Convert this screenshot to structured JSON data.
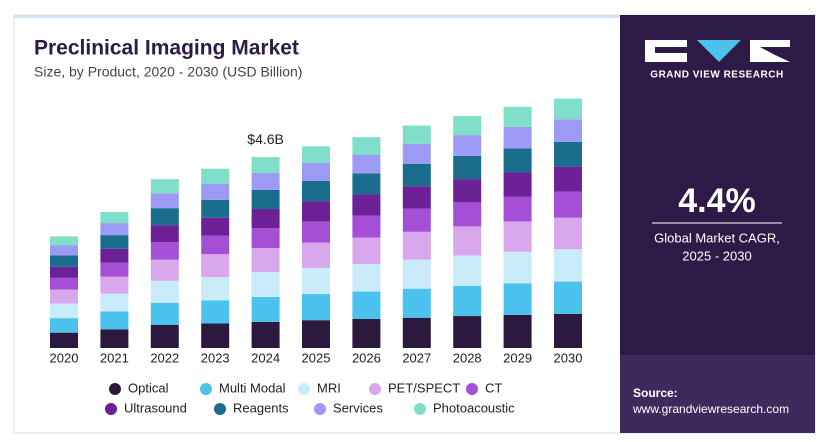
{
  "chart_data": {
    "type": "stacked_bar",
    "title": "Preclinical Imaging Market",
    "subtitle": "Size, by Product, 2020 - 2030 (USD Billion)",
    "categories": [
      "2020",
      "2021",
      "2022",
      "2023",
      "2024",
      "2025",
      "2026",
      "2027",
      "2028",
      "2029",
      "2030"
    ],
    "series": [
      {
        "name": "Optical",
        "color": "#2b1a3d",
        "values": [
          0.37,
          0.45,
          0.56,
          0.59,
          0.63,
          0.67,
          0.7,
          0.73,
          0.77,
          0.8,
          0.82
        ]
      },
      {
        "name": "Multi Modal",
        "color": "#4cc3ee",
        "values": [
          0.35,
          0.43,
          0.53,
          0.56,
          0.6,
          0.63,
          0.66,
          0.7,
          0.73,
          0.76,
          0.78
        ]
      },
      {
        "name": "MRI",
        "color": "#c9ebfa",
        "values": [
          0.35,
          0.43,
          0.53,
          0.56,
          0.6,
          0.63,
          0.66,
          0.7,
          0.73,
          0.76,
          0.78
        ]
      },
      {
        "name": "PET/SPECT",
        "color": "#d8a7ec",
        "values": [
          0.34,
          0.41,
          0.51,
          0.55,
          0.58,
          0.61,
          0.64,
          0.67,
          0.7,
          0.73,
          0.76
        ]
      },
      {
        "name": "CT",
        "color": "#a44fd6",
        "values": [
          0.28,
          0.34,
          0.42,
          0.45,
          0.48,
          0.51,
          0.53,
          0.56,
          0.58,
          0.6,
          0.63
        ]
      },
      {
        "name": "Ultrasound",
        "color": "#6c2197",
        "values": [
          0.27,
          0.33,
          0.41,
          0.43,
          0.46,
          0.49,
          0.51,
          0.54,
          0.56,
          0.58,
          0.6
        ]
      },
      {
        "name": "Reagents",
        "color": "#1a6d8c",
        "values": [
          0.27,
          0.33,
          0.41,
          0.43,
          0.46,
          0.49,
          0.51,
          0.54,
          0.56,
          0.58,
          0.6
        ]
      },
      {
        "name": "Services",
        "color": "#9d9af5",
        "values": [
          0.24,
          0.29,
          0.36,
          0.39,
          0.41,
          0.43,
          0.45,
          0.48,
          0.5,
          0.52,
          0.54
        ]
      },
      {
        "name": "Photoacoustic",
        "color": "#7fdfc8",
        "values": [
          0.22,
          0.27,
          0.34,
          0.36,
          0.38,
          0.4,
          0.42,
          0.44,
          0.46,
          0.48,
          0.5
        ]
      }
    ],
    "annotation": {
      "label": "$4.6B",
      "value": 4.6,
      "category": "2024"
    }
  },
  "panel": {
    "brand": "GRAND VIEW RESEARCH",
    "cagr": "4.4%",
    "cagr_caption": [
      "Global Market CAGR,",
      "2025 - 2030"
    ],
    "source_label": "Source:",
    "source_url": "www.grandviewresearch.com"
  }
}
